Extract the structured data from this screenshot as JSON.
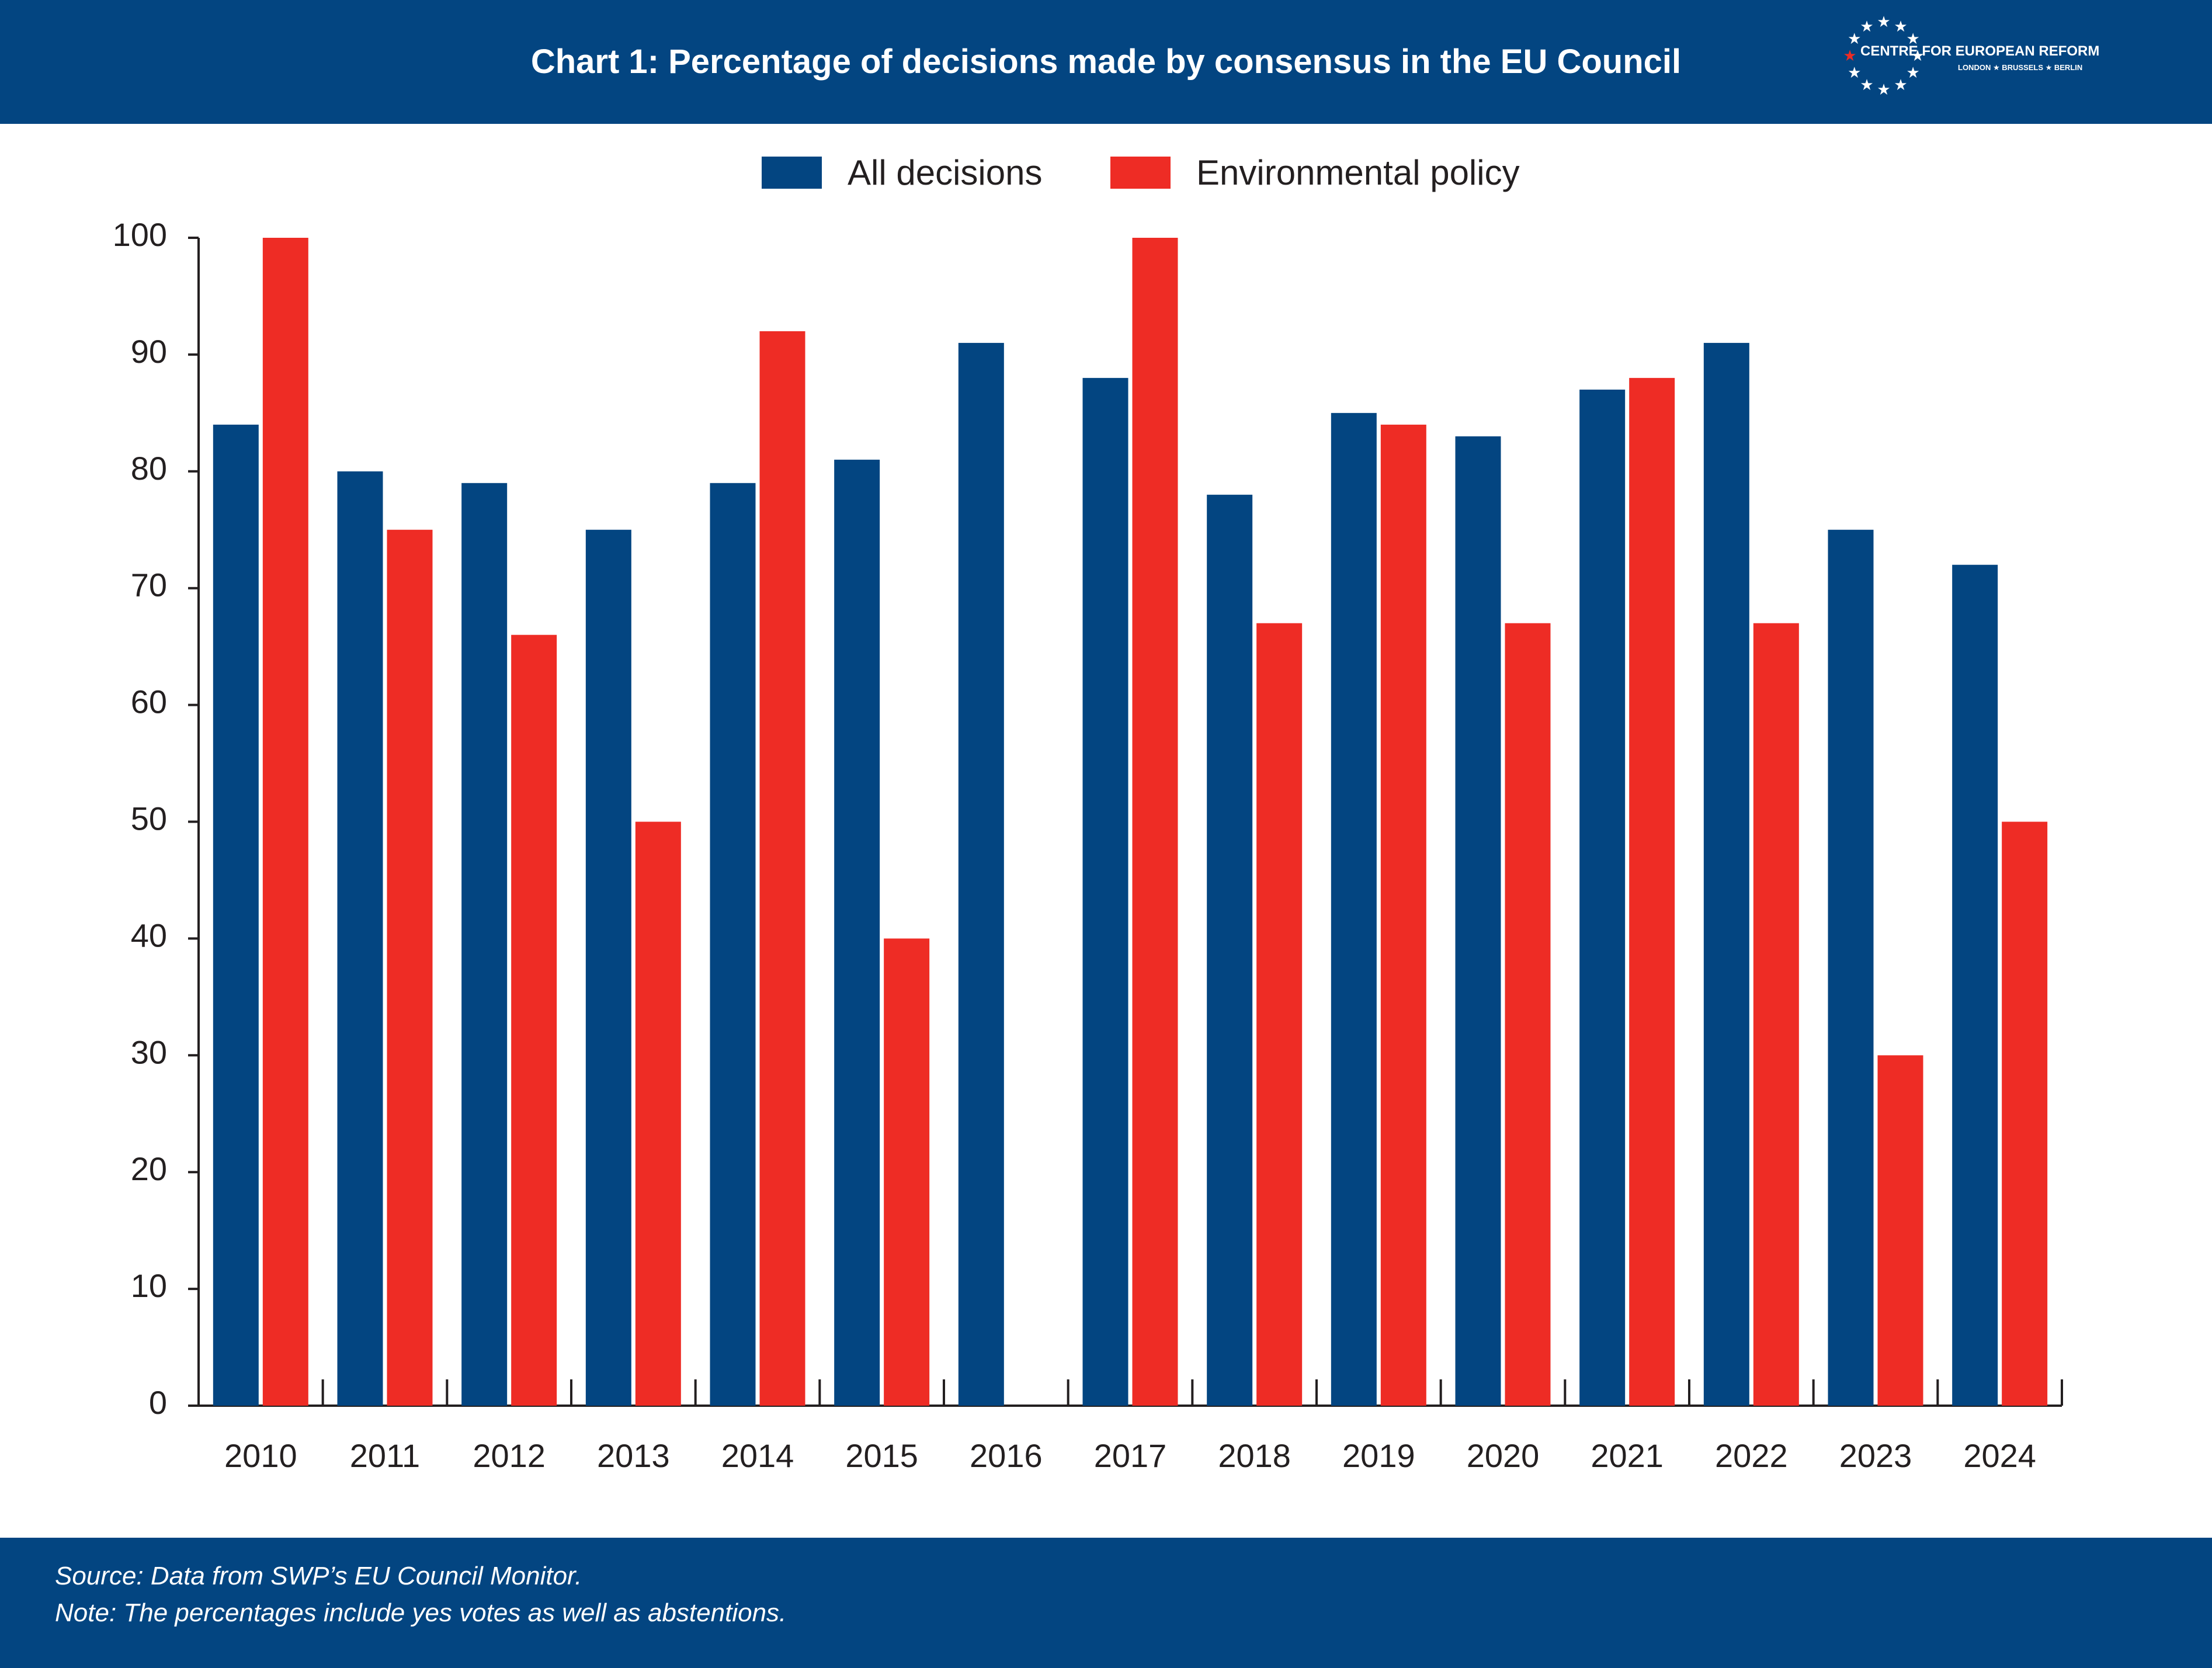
{
  "header": {
    "title": "Chart 1: Percentage of decisions made by consensus in the EU Council",
    "logo_name": "CENTRE FOR EUROPEAN REFORM",
    "logo_cities": "LONDON ★ BRUSSELS ★ BERLIN"
  },
  "colors": {
    "header_bg": "#034581",
    "all_decisions": "#034581",
    "environmental_policy": "#ee2c25",
    "text": "#231f20"
  },
  "chart_data": {
    "type": "bar",
    "title": "Chart 1: Percentage of decisions made by consensus in the EU Council",
    "xlabel": "",
    "ylabel": "",
    "ylim": [
      0,
      100
    ],
    "yticks": [
      "0",
      "10",
      "20",
      "30",
      "40",
      "50",
      "60",
      "70",
      "80",
      "90",
      "100"
    ],
    "grid": false,
    "legend_position": "top-center",
    "categories": [
      "2010",
      "2011",
      "2012",
      "2013",
      "2014",
      "2015",
      "2016",
      "2017",
      "2018",
      "2019",
      "2020",
      "2021",
      "2022",
      "2023",
      "2024"
    ],
    "series": [
      {
        "name": "All decisions",
        "color": "#034581",
        "values": [
          84,
          80,
          79,
          75,
          79,
          81,
          91,
          88,
          78,
          85,
          83,
          87,
          91,
          75,
          72
        ]
      },
      {
        "name": "Environmental policy",
        "color": "#ee2c25",
        "values": [
          100,
          75,
          66,
          50,
          92,
          40,
          0,
          100,
          67,
          84,
          67,
          88,
          67,
          30,
          50
        ]
      }
    ]
  },
  "footer": {
    "source": "Source: Data from SWP’s EU Council Monitor.",
    "note": "Note: The percentages include yes votes as well as abstentions."
  }
}
